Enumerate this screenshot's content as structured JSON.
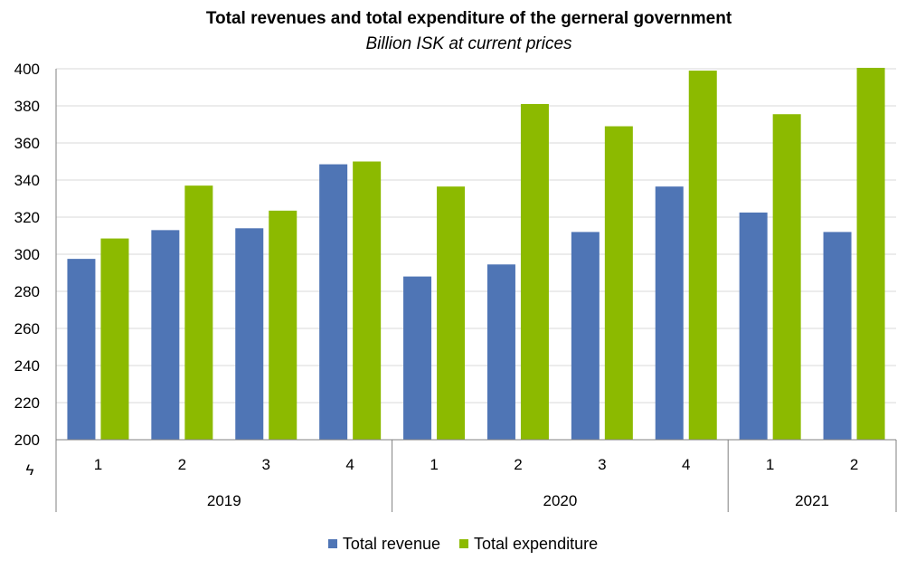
{
  "chart_data": {
    "type": "bar",
    "title": "Total revenues and total expenditure of the gerneral government",
    "subtitle": "Billion ISK at current prices",
    "xlabel": "",
    "ylabel": "",
    "ylim": [
      200,
      400
    ],
    "yticks": [
      "200",
      "220",
      "240",
      "260",
      "280",
      "300",
      "320",
      "340",
      "360",
      "380",
      "400"
    ],
    "grid": true,
    "legend_position": "bottom",
    "categories": [
      "1",
      "2",
      "3",
      "4",
      "1",
      "2",
      "3",
      "4",
      "1",
      "2"
    ],
    "groups": [
      {
        "label": "2019",
        "count": 4
      },
      {
        "label": "2020",
        "count": 4
      },
      {
        "label": "2021",
        "count": 2
      }
    ],
    "axis_break_symbol": "ϟ",
    "series": [
      {
        "name": "Total revenue",
        "color": "#4f75b5",
        "values": [
          297.5,
          313,
          314,
          348.5,
          288,
          294.5,
          312,
          336.5,
          322.5,
          312
        ]
      },
      {
        "name": "Total expenditure",
        "color": "#8cba00",
        "values": [
          308.5,
          337,
          323.5,
          350,
          336.5,
          381,
          369,
          399,
          375.5,
          400.5
        ]
      }
    ]
  }
}
